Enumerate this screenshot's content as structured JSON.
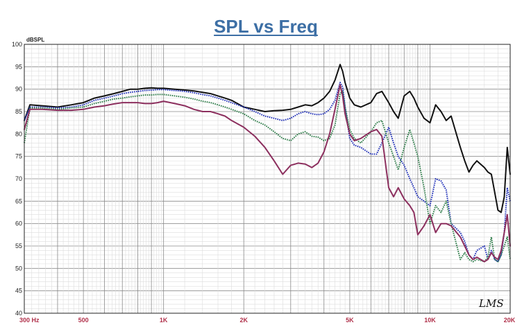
{
  "chart_data": {
    "type": "line",
    "title": "SPL vs Freq",
    "ylabel": "dBSPL",
    "ylim": [
      40,
      100
    ],
    "yticks": [
      40,
      45,
      50,
      55,
      60,
      65,
      70,
      75,
      80,
      85,
      90,
      95,
      100
    ],
    "xscale": "log",
    "xlim": [
      300,
      20000
    ],
    "xticks": [
      {
        "value": 300,
        "label": "300  Hz"
      },
      {
        "value": 500,
        "label": "500"
      },
      {
        "value": 1000,
        "label": "1K"
      },
      {
        "value": 2000,
        "label": "2K"
      },
      {
        "value": 5000,
        "label": "5K"
      },
      {
        "value": 10000,
        "label": "10K"
      },
      {
        "value": 20000,
        "label": "20K"
      }
    ],
    "grid": true,
    "logo": "LMS",
    "series": [
      {
        "color": "#111111",
        "style": "solid",
        "x": [
          300,
          315,
          350,
          400,
          450,
          500,
          550,
          600,
          650,
          700,
          750,
          800,
          850,
          900,
          950,
          1000,
          1100,
          1200,
          1300,
          1400,
          1500,
          1600,
          1700,
          1800,
          2000,
          2200,
          2400,
          2600,
          2800,
          3000,
          3200,
          3400,
          3600,
          3800,
          4000,
          4200,
          4400,
          4600,
          4700,
          4800,
          5000,
          5200,
          5500,
          6000,
          6300,
          6600,
          7000,
          7300,
          7600,
          8000,
          8400,
          8700,
          9000,
          9500,
          10000,
          10500,
          11000,
          11500,
          12000,
          13000,
          13500,
          14000,
          14500,
          15000,
          16000,
          16500,
          17000,
          17500,
          18000,
          18500,
          19000,
          19500,
          20000
        ],
        "y": [
          83,
          86.5,
          86.3,
          86,
          86.5,
          87,
          88,
          88.5,
          89,
          89.5,
          90,
          90,
          90.2,
          90.3,
          90.2,
          90.2,
          90,
          89.8,
          89.6,
          89.3,
          89,
          88.5,
          88,
          87.5,
          86,
          85.5,
          85,
          85.2,
          85.3,
          85.5,
          86,
          86.5,
          86.3,
          87,
          88,
          89.5,
          92,
          95.5,
          94,
          91.5,
          88,
          86.5,
          86,
          87,
          89,
          89.5,
          87,
          85,
          83.5,
          88.5,
          89.5,
          88,
          86,
          83.5,
          82.5,
          86.5,
          85,
          83,
          84,
          77,
          74,
          71.5,
          73,
          74,
          72.5,
          71.5,
          71,
          67,
          63,
          62.5,
          66,
          77,
          71
        ]
      },
      {
        "color": "#1f2fb8",
        "style": "dotted",
        "x": [
          300,
          315,
          350,
          400,
          450,
          500,
          550,
          600,
          650,
          700,
          750,
          800,
          850,
          900,
          950,
          1000,
          1100,
          1200,
          1300,
          1400,
          1500,
          1600,
          1700,
          1800,
          2000,
          2200,
          2400,
          2600,
          2800,
          3000,
          3200,
          3400,
          3600,
          3800,
          4000,
          4200,
          4400,
          4600,
          4700,
          4800,
          5000,
          5200,
          5500,
          6000,
          6300,
          6600,
          7000,
          7300,
          7600,
          8000,
          8400,
          8700,
          9000,
          9500,
          10000,
          10500,
          11000,
          11500,
          12000,
          13000,
          13500,
          14000,
          14500,
          15000,
          16000,
          16500,
          17000,
          17500,
          18000,
          18500,
          19000,
          19500,
          20000
        ],
        "y": [
          83,
          86,
          86,
          85.8,
          86,
          86.5,
          87.5,
          88,
          88.5,
          89,
          89.3,
          89.5,
          89.7,
          89.8,
          89.9,
          89.9,
          89.7,
          89.5,
          89.2,
          88.8,
          88.5,
          88,
          87.5,
          87,
          86,
          85,
          84,
          83.5,
          83,
          83.5,
          84.5,
          85,
          84.5,
          84.3,
          84.5,
          85.5,
          87.5,
          91.5,
          90.5,
          86,
          79,
          77.5,
          77,
          75.5,
          75.5,
          78,
          81.5,
          78,
          75,
          73,
          70,
          68,
          66,
          65,
          64,
          70,
          69.5,
          67.5,
          60,
          58,
          56,
          53,
          52,
          54,
          55,
          52,
          54,
          52,
          51.5,
          53,
          58,
          68,
          65
        ]
      },
      {
        "color": "#2f7d4a",
        "style": "dotted",
        "x": [
          300,
          315,
          350,
          400,
          450,
          500,
          550,
          600,
          650,
          700,
          750,
          800,
          850,
          900,
          950,
          1000,
          1100,
          1200,
          1300,
          1400,
          1500,
          1600,
          1700,
          1800,
          2000,
          2200,
          2400,
          2600,
          2800,
          3000,
          3200,
          3400,
          3600,
          3800,
          4000,
          4200,
          4400,
          4600,
          4700,
          4800,
          5000,
          5200,
          5500,
          6000,
          6300,
          6600,
          7000,
          7300,
          7600,
          8000,
          8400,
          8700,
          9000,
          9500,
          10000,
          10500,
          11000,
          11500,
          12000,
          13000,
          13500,
          14000,
          14500,
          15000,
          16000,
          16500,
          17000,
          17500,
          18000,
          18500,
          19000,
          19500,
          20000
        ],
        "y": [
          78,
          85.8,
          85.8,
          85.5,
          85.8,
          86,
          86.8,
          87.3,
          87.8,
          88,
          88.3,
          88.5,
          88.7,
          88.7,
          88.8,
          88.8,
          88.5,
          88.2,
          87.8,
          87.3,
          87,
          86.5,
          86,
          85.5,
          84.5,
          83,
          82,
          80.5,
          79,
          78.5,
          80,
          80.5,
          79.5,
          79.3,
          78.5,
          79,
          82,
          89,
          89.5,
          86,
          81,
          79,
          78,
          80.5,
          82.5,
          83,
          78,
          75,
          72,
          77,
          81,
          78,
          75,
          68,
          60,
          64,
          62.5,
          65,
          60,
          52,
          53.5,
          52,
          51.5,
          52,
          51.5,
          52.5,
          57,
          52,
          51.5,
          53,
          55,
          57,
          52
        ]
      },
      {
        "color": "#8c2f5e",
        "style": "solid",
        "x": [
          300,
          315,
          350,
          400,
          450,
          500,
          550,
          600,
          650,
          700,
          750,
          800,
          850,
          900,
          950,
          1000,
          1100,
          1200,
          1300,
          1400,
          1500,
          1600,
          1700,
          1800,
          2000,
          2200,
          2400,
          2600,
          2800,
          3000,
          3200,
          3400,
          3600,
          3800,
          4000,
          4200,
          4400,
          4600,
          4700,
          4800,
          5000,
          5200,
          5500,
          6000,
          6300,
          6600,
          7000,
          7300,
          7600,
          8000,
          8400,
          8700,
          9000,
          9500,
          10000,
          10500,
          11000,
          11500,
          12000,
          13000,
          13500,
          14000,
          14500,
          15000,
          16000,
          16500,
          17000,
          17500,
          18000,
          18500,
          19000,
          19500,
          20000
        ],
        "y": [
          81,
          85.5,
          85.5,
          85.3,
          85.3,
          85.5,
          86,
          86.3,
          86.7,
          87,
          87,
          87,
          86.8,
          86.8,
          87,
          87.3,
          86.8,
          86.3,
          85.5,
          85,
          85,
          84.5,
          84,
          83,
          81.5,
          79.5,
          77,
          74,
          71,
          73,
          73.5,
          73.3,
          72.5,
          73.5,
          76,
          80,
          85.5,
          91,
          88.5,
          84.5,
          80,
          78.5,
          79,
          80.5,
          81,
          79.5,
          68,
          66,
          68,
          65.5,
          64,
          62.5,
          57.5,
          59.5,
          62,
          58,
          60,
          60,
          59.5,
          57,
          55,
          53,
          52,
          52.5,
          51.5,
          52,
          53.5,
          52.5,
          52,
          54,
          58,
          62,
          55
        ]
      }
    ]
  }
}
